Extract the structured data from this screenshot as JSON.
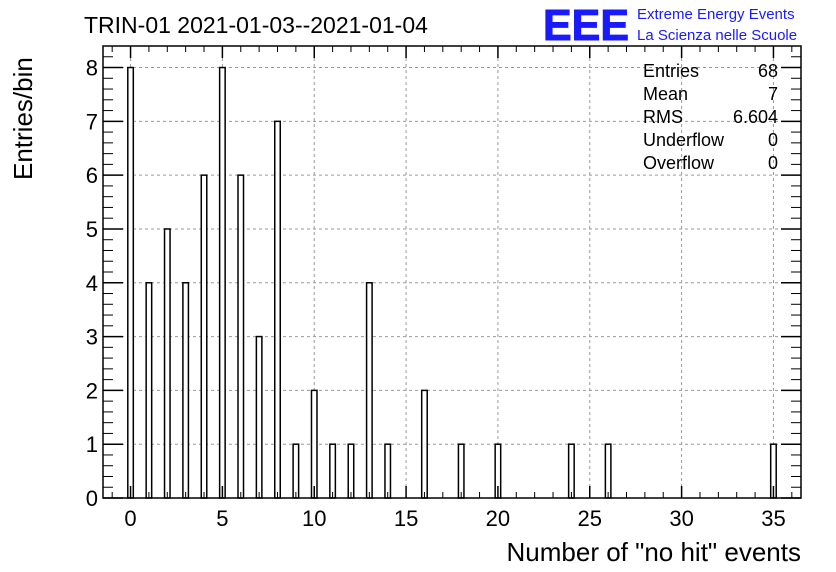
{
  "chart_data": {
    "type": "bar",
    "title": "TRIN-01 2021-01-03--2021-01-04",
    "xlabel": "Number of \"no hit\" events",
    "ylabel": "Entries/bin",
    "xlim": [
      -1.5,
      36.5
    ],
    "ylim": [
      0,
      8.4
    ],
    "x_ticks": [
      0,
      5,
      10,
      15,
      20,
      25,
      30,
      35
    ],
    "y_ticks": [
      0,
      1,
      2,
      3,
      4,
      5,
      6,
      7,
      8
    ],
    "grid": true,
    "x": [
      0,
      1,
      2,
      3,
      4,
      5,
      6,
      7,
      8,
      9,
      10,
      11,
      12,
      13,
      14,
      16,
      18,
      20,
      24,
      26,
      35
    ],
    "values": [
      8,
      4,
      5,
      4,
      6,
      8,
      6,
      3,
      7,
      1,
      2,
      1,
      1,
      4,
      1,
      2,
      1,
      1,
      1,
      1,
      1
    ],
    "stats": [
      {
        "label": "Entries",
        "value": "68"
      },
      {
        "label": "Mean",
        "value": "7"
      },
      {
        "label": "RMS",
        "value": "6.604"
      },
      {
        "label": "Underflow",
        "value": "0"
      },
      {
        "label": "Overflow",
        "value": "0"
      }
    ]
  },
  "logo": {
    "mark": "EEE",
    "line1": "Extreme Energy Events",
    "line2": "La Scienza nelle Scuole",
    "color": "#1a1aff"
  }
}
